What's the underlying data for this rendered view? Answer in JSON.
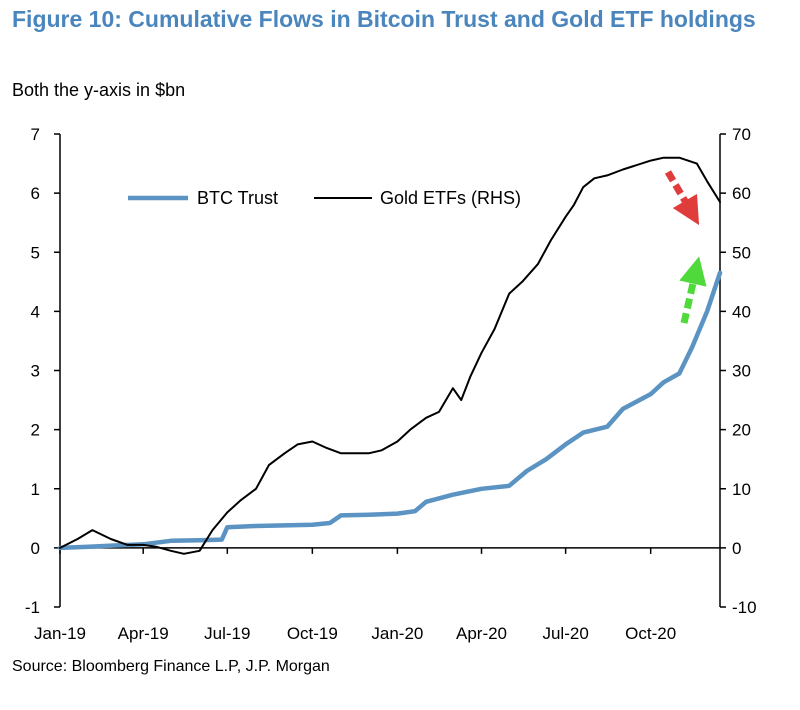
{
  "title": "Figure 10: Cumulative Flows in Bitcoin Trust and Gold ETF holdings",
  "subtitle": "Both the y-axis in $bn",
  "source": "Source: Bloomberg Finance L.P, J.P. Morgan",
  "colors": {
    "title": "#4a86bd",
    "btc": "#5b93c3",
    "gold": "#000000",
    "arrow_down": "#e03c3c",
    "arrow_up": "#4fd93a"
  },
  "chart_data": {
    "type": "line",
    "title": "Figure 10: Cumulative Flows in Bitcoin Trust and Gold ETF holdings",
    "subtitle": "Both the y-axis in $bn",
    "x_ticks": [
      "Jan-19",
      "Apr-19",
      "Jul-19",
      "Oct-19",
      "Jan-20",
      "Apr-20",
      "Jul-20",
      "Oct-20"
    ],
    "xlim": [
      "2019-01-01",
      "2020-12-15"
    ],
    "ylim_left": [
      -1,
      7
    ],
    "ylim_right": [
      -10,
      70
    ],
    "y_ticks_left": [
      "-1",
      "0",
      "1",
      "2",
      "3",
      "4",
      "5",
      "6",
      "7"
    ],
    "y_ticks_right": [
      "-10",
      "0",
      "10",
      "20",
      "30",
      "40",
      "50",
      "60",
      "70"
    ],
    "legend": {
      "position": "top-left",
      "entries": [
        "BTC Trust",
        "Gold ETFs (RHS)"
      ]
    },
    "grid": false,
    "series": [
      {
        "name": "BTC Trust",
        "axis": "left",
        "color": "#5b93c3",
        "points": [
          [
            "2019-01-01",
            0.0
          ],
          [
            "2019-02-01",
            0.02
          ],
          [
            "2019-03-01",
            0.04
          ],
          [
            "2019-04-01",
            0.06
          ],
          [
            "2019-05-01",
            0.12
          ],
          [
            "2019-06-01",
            0.13
          ],
          [
            "2019-06-25",
            0.14
          ],
          [
            "2019-07-01",
            0.35
          ],
          [
            "2019-08-01",
            0.37
          ],
          [
            "2019-09-01",
            0.38
          ],
          [
            "2019-10-01",
            0.39
          ],
          [
            "2019-10-20",
            0.42
          ],
          [
            "2019-11-01",
            0.55
          ],
          [
            "2019-12-01",
            0.56
          ],
          [
            "2020-01-01",
            0.58
          ],
          [
            "2020-01-20",
            0.62
          ],
          [
            "2020-02-01",
            0.78
          ],
          [
            "2020-03-01",
            0.9
          ],
          [
            "2020-04-01",
            1.0
          ],
          [
            "2020-05-01",
            1.05
          ],
          [
            "2020-05-20",
            1.3
          ],
          [
            "2020-06-10",
            1.5
          ],
          [
            "2020-07-01",
            1.75
          ],
          [
            "2020-07-20",
            1.95
          ],
          [
            "2020-08-15",
            2.05
          ],
          [
            "2020-09-01",
            2.35
          ],
          [
            "2020-10-01",
            2.6
          ],
          [
            "2020-10-15",
            2.8
          ],
          [
            "2020-11-01",
            2.95
          ],
          [
            "2020-11-15",
            3.4
          ],
          [
            "2020-12-01",
            4.0
          ],
          [
            "2020-12-15",
            4.65
          ]
        ]
      },
      {
        "name": "Gold ETFs (RHS)",
        "axis": "right",
        "color": "#000000",
        "points": [
          [
            "2019-01-01",
            0.0
          ],
          [
            "2019-01-20",
            1.5
          ],
          [
            "2019-02-05",
            3.0
          ],
          [
            "2019-02-25",
            1.5
          ],
          [
            "2019-03-15",
            0.5
          ],
          [
            "2019-04-01",
            0.5
          ],
          [
            "2019-04-15",
            0.2
          ],
          [
            "2019-05-01",
            -0.5
          ],
          [
            "2019-05-15",
            -1.0
          ],
          [
            "2019-06-01",
            -0.5
          ],
          [
            "2019-06-15",
            3.0
          ],
          [
            "2019-07-01",
            6.0
          ],
          [
            "2019-07-15",
            8.0
          ],
          [
            "2019-08-01",
            10.0
          ],
          [
            "2019-08-15",
            14.0
          ],
          [
            "2019-09-01",
            16.0
          ],
          [
            "2019-09-15",
            17.5
          ],
          [
            "2019-10-01",
            18.0
          ],
          [
            "2019-10-15",
            17.0
          ],
          [
            "2019-11-01",
            16.0
          ],
          [
            "2019-12-01",
            16.0
          ],
          [
            "2019-12-15",
            16.5
          ],
          [
            "2020-01-01",
            18.0
          ],
          [
            "2020-01-15",
            20.0
          ],
          [
            "2020-02-01",
            22.0
          ],
          [
            "2020-02-15",
            23.0
          ],
          [
            "2020-03-01",
            27.0
          ],
          [
            "2020-03-10",
            25.0
          ],
          [
            "2020-03-20",
            29.0
          ],
          [
            "2020-04-01",
            33.0
          ],
          [
            "2020-04-15",
            37.0
          ],
          [
            "2020-05-01",
            43.0
          ],
          [
            "2020-05-15",
            45.0
          ],
          [
            "2020-06-01",
            48.0
          ],
          [
            "2020-06-15",
            52.0
          ],
          [
            "2020-07-01",
            56.0
          ],
          [
            "2020-07-10",
            58.0
          ],
          [
            "2020-07-20",
            61.0
          ],
          [
            "2020-08-01",
            62.5
          ],
          [
            "2020-08-15",
            63.0
          ],
          [
            "2020-09-01",
            64.0
          ],
          [
            "2020-10-01",
            65.5
          ],
          [
            "2020-10-15",
            66.0
          ],
          [
            "2020-11-01",
            66.0
          ],
          [
            "2020-11-20",
            65.0
          ],
          [
            "2020-12-01",
            62.0
          ],
          [
            "2020-12-15",
            58.5
          ]
        ]
      }
    ]
  }
}
